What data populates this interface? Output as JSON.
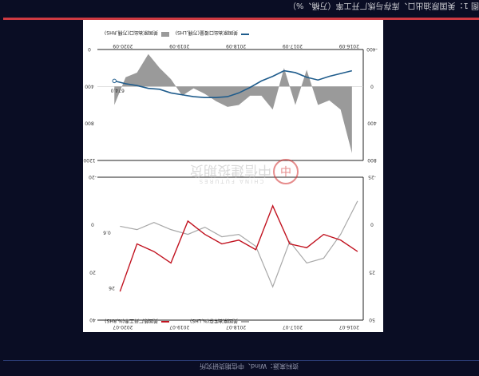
{
  "page_title": "图 1：美国原油出口、库存与炼厂开工率（万桶、%）",
  "source_note": "资料来源：Wind、中信期货研究所",
  "watermark": {
    "cn": "中信建投期货",
    "en": "CHINA FUTURES"
  },
  "colors": {
    "background": "#0a0d24",
    "accent": "#cf3a42",
    "navy_line": "#1f5c8c",
    "gray_area": "#9a9a9a",
    "red_line": "#c1121f",
    "gray_line": "#a8a8a8"
  },
  "chart_data": [
    {
      "type": "line",
      "legend": [
        "美国原油出口(万桶,RHS)",
        "美国原油出口增量(万桶,LHS)"
      ],
      "x_ticks": [
        "2016-09",
        "2017-09",
        "2018-09",
        "2019-09",
        "2020-09"
      ],
      "left_ticks": [
        "800",
        "400",
        "0",
        "-400"
      ],
      "right_ticks": [
        "1200",
        "800",
        "400",
        "0"
      ],
      "annotations": [
        "674.0"
      ],
      "series": [
        {
          "name": "美国原油出口(万桶,RHS)",
          "axis": "right",
          "x": [
            2016.7,
            2016.9,
            2017.1,
            2017.3,
            2017.5,
            2017.7,
            2017.9,
            2018.1,
            2018.3,
            2018.5,
            2018.7,
            2018.9,
            2019.1,
            2019.3,
            2019.5,
            2019.7,
            2019.9,
            2020.1,
            2020.3,
            2020.5,
            2020.7,
            2020.9
          ],
          "values": [
            230,
            260,
            290,
            330,
            300,
            250,
            230,
            290,
            340,
            410,
            470,
            510,
            520,
            520,
            510,
            490,
            470,
            430,
            420,
            390,
            370,
            340
          ]
        },
        {
          "name": "美国原油出口增量(万桶,LHS)",
          "axis": "left",
          "x": [
            2016.7,
            2016.9,
            2017.1,
            2017.3,
            2017.5,
            2017.7,
            2017.9,
            2018.1,
            2018.3,
            2018.5,
            2018.7,
            2018.9,
            2019.1,
            2019.3,
            2019.5,
            2019.7,
            2019.9,
            2020.1,
            2020.3,
            2020.5,
            2020.7,
            2020.9
          ],
          "values": [
            720,
            250,
            150,
            200,
            -180,
            200,
            -200,
            250,
            100,
            100,
            200,
            220,
            160,
            80,
            20,
            100,
            -80,
            -200,
            -350,
            -150,
            -100,
            200
          ]
        }
      ]
    },
    {
      "type": "line",
      "legend": [
        "美国炼厂开工率(%,RHS)",
        "美国原油库存(%,LHS)"
      ],
      "x_ticks": [
        "2016-07",
        "2017-07",
        "2018-07",
        "2019-07",
        "2020-07"
      ],
      "left_ticks": [
        "40",
        "20",
        "0",
        "-20"
      ],
      "right_ticks": [
        "50",
        "25",
        "0",
        "-25"
      ],
      "annotations": [
        "26",
        "0.6"
      ],
      "series": [
        {
          "name": "美国炼厂开工率(%,RHS)",
          "axis": "right",
          "x": [
            2016.6,
            2016.9,
            2017.2,
            2017.5,
            2017.8,
            2018.1,
            2018.4,
            2018.7,
            2019.0,
            2019.3,
            2019.6,
            2019.9,
            2020.2,
            2020.5,
            2020.8
          ],
          "values": [
            14,
            8,
            5,
            12,
            10,
            -10,
            13,
            8,
            10,
            5,
            -2,
            20,
            14,
            10,
            35
          ]
        },
        {
          "name": "美国原油库存(%,LHS)",
          "axis": "left",
          "x": [
            2016.6,
            2016.9,
            2017.2,
            2017.5,
            2017.8,
            2018.1,
            2018.4,
            2018.7,
            2019.0,
            2019.3,
            2019.6,
            2019.9,
            2020.2,
            2020.5,
            2020.8
          ],
          "values": [
            -10,
            4,
            14,
            16,
            7,
            26,
            9,
            4,
            5,
            1,
            4,
            2,
            -1,
            2,
            0.6
          ]
        }
      ]
    }
  ]
}
